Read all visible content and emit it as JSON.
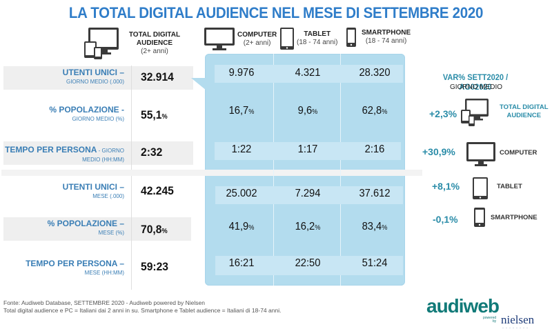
{
  "title": "LA TOTAL DIGITAL AUDIENCE NEL MESE DI SETTEMBRE 2020",
  "header": {
    "total": {
      "label": "TOTAL DIGITAL AUDIENCE",
      "line1": "TOTAL DIGITAL",
      "line2": "AUDIENCE",
      "age": "(2+ anni)",
      "icon": "multi-device-icon"
    },
    "columns": [
      {
        "label": "COMPUTER",
        "age": "(2+ anni)",
        "icon": "computer-icon"
      },
      {
        "label": "TABLET",
        "age": "(18 - 74 anni)",
        "icon": "tablet-icon"
      },
      {
        "label": "SMARTPHONE",
        "age": "(18 - 74 anni)",
        "icon": "smartphone-icon"
      }
    ]
  },
  "rows": [
    {
      "label": "UTENTI UNICI –",
      "sub": "GIORNO MEDIO (.000)",
      "total": "32.914",
      "total_pct": "",
      "values": [
        "9.976",
        "4.321",
        "28.320"
      ],
      "pct": [
        "",
        "",
        ""
      ]
    },
    {
      "label": "% POPOLAZIONE -",
      "sub": "GIORNO MEDIO (%)",
      "total": "55,1",
      "total_pct": "%",
      "values": [
        "16,7",
        "9,6",
        "62,8"
      ],
      "pct": [
        "%",
        "%",
        "%"
      ]
    },
    {
      "label": "TEMPO PER PERSONA",
      "label_suffix": " - GIORNO",
      "sub": "MEDIO (HH:MM)",
      "total": "2:32",
      "total_pct": "",
      "values": [
        "1:22",
        "1:17",
        "2:16"
      ],
      "pct": [
        "",
        "",
        ""
      ]
    },
    {
      "label": "UTENTI UNICI –",
      "sub": "MESE (.000)",
      "total": "42.245",
      "total_pct": "",
      "values": [
        "25.002",
        "7.294",
        "37.612"
      ],
      "pct": [
        "",
        "",
        ""
      ]
    },
    {
      "label": "% POPOLAZIONE –",
      "sub": "MESE (%)",
      "total": "70,8",
      "total_pct": "%",
      "values": [
        "41,9",
        "16,2",
        "83,4"
      ],
      "pct": [
        "%",
        "%",
        "%"
      ]
    },
    {
      "label": "TEMPO PER PERSONA –",
      "sub": "MESE (HH:MM)",
      "total": "59:23",
      "total_pct": "",
      "values": [
        "16:21",
        "22:50",
        "51:24"
      ],
      "pct": [
        "",
        "",
        ""
      ]
    }
  ],
  "variation": {
    "title": "VAR% SETT2020 / AG02020",
    "subtitle": "GIORNO MEDIO",
    "items": [
      {
        "value": "+2,3%",
        "label_line1": "TOTAL DIGITAL",
        "label_line2": "AUDIENCE",
        "icon": "multi-device-icon"
      },
      {
        "value": "+30,9%",
        "label_line1": "COMPUTER",
        "label_line2": "",
        "icon": "computer-icon"
      },
      {
        "value": "+8,1%",
        "label_line1": "TABLET",
        "label_line2": "",
        "icon": "tablet-icon"
      },
      {
        "value": "-0,1%",
        "label_line1": "SMARTPHONE",
        "label_line2": "",
        "icon": "smartphone-icon"
      }
    ]
  },
  "footer": {
    "line1": "Fonte: Audiweb Database, SETTEMBRE 2020 - Audiweb powered by Nielsen",
    "line2": "Total digital audience e PC = Italiani dai 2 anni in su. Smartphone e Tablet audience = Italiani di 18-74 anni."
  },
  "logo": {
    "brand": "audiweb",
    "powered": "powered",
    "by": "by",
    "partner": "nielsen"
  },
  "colors": {
    "title": "#2f7dc9",
    "label": "#3a7eb5",
    "variation": "#2a8ca8",
    "panel": "#b3dcee",
    "logo": "#117a78",
    "nielsen": "#1d3b79"
  }
}
